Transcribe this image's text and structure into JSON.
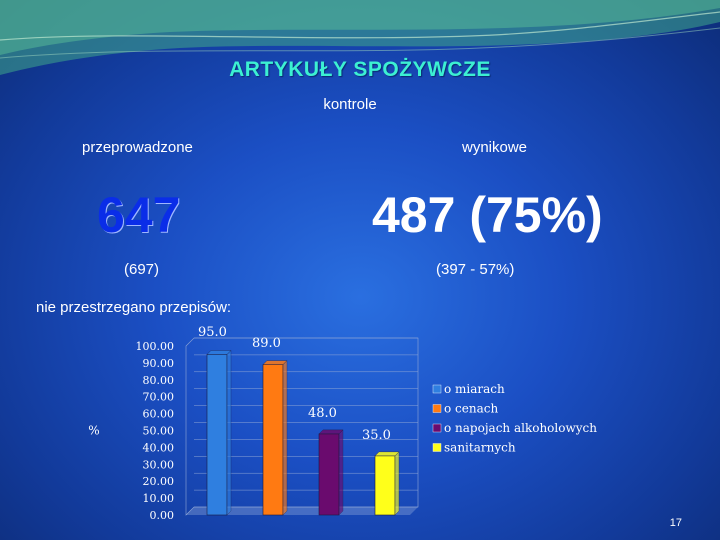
{
  "slide": {
    "title": "ARTYKUŁY SPOŻYWCZE",
    "subtitle": "kontrole",
    "left_label": "przeprowadzone",
    "right_label": "wynikowe",
    "left_value": "647",
    "right_value": "487 (75%)",
    "left_prev": "(697)",
    "right_prev": "(397 - 57%)",
    "section_label": "nie przestrzegano przepisów:",
    "slide_number": "17"
  },
  "chart_data": {
    "type": "bar",
    "ylabel": "%",
    "ylim": [
      0,
      100
    ],
    "ytick_step": 10,
    "yticks": [
      "100.00",
      "90.00",
      "80.00",
      "70.00",
      "60.00",
      "50.00",
      "40.00",
      "30.00",
      "20.00",
      "10.00",
      "0.00"
    ],
    "series": [
      {
        "name": "o miarach",
        "value": 95.0,
        "label": "95.0",
        "color": "#2f7fe0"
      },
      {
        "name": "o cenach",
        "value": 89.0,
        "label": "89.0",
        "color": "#ff7a12"
      },
      {
        "name": "o napojach alkoholowych",
        "value": 48.0,
        "label": "48.0",
        "color": "#6a0b6e"
      },
      {
        "name": "sanitarnych",
        "value": 35.0,
        "label": "35.0",
        "color": "#ffff1a"
      }
    ],
    "legend_position": "right",
    "grid": true
  }
}
